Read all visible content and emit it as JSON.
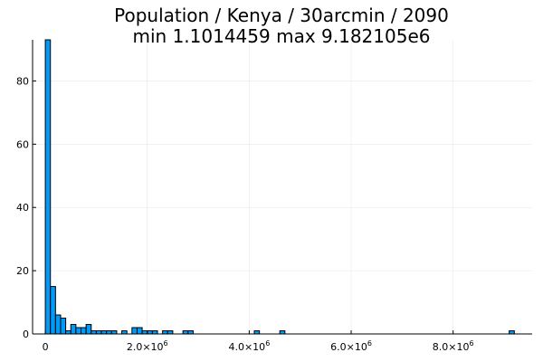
{
  "chart_data": {
    "type": "bar",
    "title": "Population / Kenya / 30arcmin / 2090",
    "subtitle": "min 1.1014459  max 9.182105e6",
    "xlabel": "",
    "ylabel": "",
    "xlim": [
      -250000,
      9550000
    ],
    "ylim": [
      0,
      93
    ],
    "grid": true,
    "legend": "none",
    "bar_color": "#009af9",
    "bin_width": 100000,
    "bins": [
      {
        "x0": 0,
        "count": 93
      },
      {
        "x0": 100000,
        "count": 15
      },
      {
        "x0": 200000,
        "count": 6
      },
      {
        "x0": 300000,
        "count": 5
      },
      {
        "x0": 400000,
        "count": 1
      },
      {
        "x0": 500000,
        "count": 3
      },
      {
        "x0": 600000,
        "count": 2
      },
      {
        "x0": 700000,
        "count": 2
      },
      {
        "x0": 800000,
        "count": 3
      },
      {
        "x0": 900000,
        "count": 1
      },
      {
        "x0": 1000000,
        "count": 1
      },
      {
        "x0": 1100000,
        "count": 1
      },
      {
        "x0": 1200000,
        "count": 1
      },
      {
        "x0": 1300000,
        "count": 1
      },
      {
        "x0": 1400000,
        "count": 0
      },
      {
        "x0": 1500000,
        "count": 1
      },
      {
        "x0": 1600000,
        "count": 0
      },
      {
        "x0": 1700000,
        "count": 2
      },
      {
        "x0": 1800000,
        "count": 2
      },
      {
        "x0": 1900000,
        "count": 1
      },
      {
        "x0": 2000000,
        "count": 1
      },
      {
        "x0": 2100000,
        "count": 1
      },
      {
        "x0": 2200000,
        "count": 0
      },
      {
        "x0": 2300000,
        "count": 1
      },
      {
        "x0": 2400000,
        "count": 1
      },
      {
        "x0": 2500000,
        "count": 0
      },
      {
        "x0": 2600000,
        "count": 0
      },
      {
        "x0": 2700000,
        "count": 1
      },
      {
        "x0": 2800000,
        "count": 1
      },
      {
        "x0": 4100000,
        "count": 1
      },
      {
        "x0": 4600000,
        "count": 1
      },
      {
        "x0": 9100000,
        "count": 1
      }
    ],
    "x_ticks": [
      {
        "value": 0,
        "mantissa": "0",
        "exponent": ""
      },
      {
        "value": 2000000,
        "mantissa": "2.0×10",
        "exponent": "6"
      },
      {
        "value": 4000000,
        "mantissa": "4.0×10",
        "exponent": "6"
      },
      {
        "value": 6000000,
        "mantissa": "6.0×10",
        "exponent": "6"
      },
      {
        "value": 8000000,
        "mantissa": "8.0×10",
        "exponent": "6"
      }
    ],
    "y_ticks": [
      {
        "value": 0,
        "label": "0"
      },
      {
        "value": 20,
        "label": "20"
      },
      {
        "value": 40,
        "label": "40"
      },
      {
        "value": 60,
        "label": "60"
      },
      {
        "value": 80,
        "label": "80"
      }
    ]
  }
}
